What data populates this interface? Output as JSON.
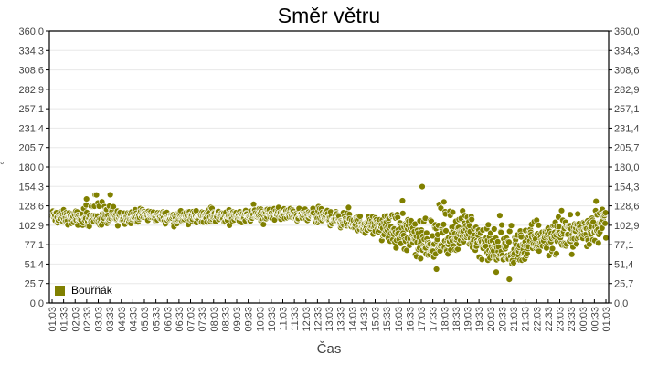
{
  "chart_data": {
    "type": "scatter",
    "title": "Směr větru",
    "xlabel": "Čas",
    "ylabel": "°",
    "ylim": [
      0,
      360
    ],
    "yticks": [
      "0,0",
      "25,7",
      "51,4",
      "77,1",
      "102,9",
      "128,6",
      "154,3",
      "180,0",
      "205,7",
      "231,4",
      "257,1",
      "282,9",
      "308,6",
      "334,3",
      "360,0"
    ],
    "xticks": [
      "01:03",
      "01:33",
      "02:03",
      "02:33",
      "03:03",
      "03:33",
      "04:03",
      "04:33",
      "05:03",
      "05:33",
      "06:03",
      "06:33",
      "07:03",
      "07:33",
      "08:03",
      "08:33",
      "09:03",
      "09:33",
      "10:03",
      "10:33",
      "11:03",
      "11:33",
      "12:03",
      "12:33",
      "13:03",
      "13:33",
      "14:03",
      "14:33",
      "15:03",
      "15:33",
      "16:03",
      "16:33",
      "17:03",
      "17:33",
      "18:03",
      "18:33",
      "19:03",
      "19:33",
      "20:03",
      "20:33",
      "21:03",
      "21:33",
      "22:03",
      "22:33",
      "23:03",
      "23:33",
      "00:03",
      "00:33",
      "01:03"
    ],
    "grid": true,
    "legend_position": "inside-bottom-left",
    "series": [
      {
        "name": "Bouřňák",
        "color": "#808000",
        "trend_description": "Approximate centre of the point cloud per half-hour tick",
        "x": [
          "01:03",
          "02:03",
          "03:03",
          "04:03",
          "05:03",
          "06:03",
          "07:03",
          "08:03",
          "09:03",
          "10:03",
          "11:03",
          "12:03",
          "13:03",
          "14:03",
          "15:03",
          "16:03",
          "17:03",
          "18:03",
          "19:03",
          "20:03",
          "21:03",
          "22:03",
          "23:03",
          "00:03",
          "01:03"
        ],
        "values": [
          115,
          112,
          113,
          114,
          117,
          113,
          114,
          116,
          115,
          117,
          118,
          115,
          113,
          106,
          102,
          95,
          80,
          85,
          95,
          72,
          65,
          85,
          90,
          95,
          115
        ],
        "spread_min": [
          98,
          95,
          92,
          95,
          100,
          100,
          100,
          100,
          100,
          102,
          103,
          100,
          95,
          88,
          80,
          55,
          30,
          45,
          60,
          35,
          30,
          45,
          45,
          55,
          60
        ],
        "spread_max": [
          132,
          130,
          162,
          130,
          130,
          128,
          128,
          135,
          130,
          132,
          135,
          132,
          140,
          128,
          125,
          140,
          160,
          170,
          140,
          128,
          138,
          135,
          130,
          138,
          138
        ]
      }
    ]
  },
  "labels": {
    "title": "Směr větru",
    "xlabel": "Čas",
    "ylabel_left": "°",
    "legend_item": "Bouřňák"
  },
  "colors": {
    "series": "#808000",
    "grid": "#e8e8e8",
    "axis": "#000000",
    "tick_label": "#444444"
  }
}
